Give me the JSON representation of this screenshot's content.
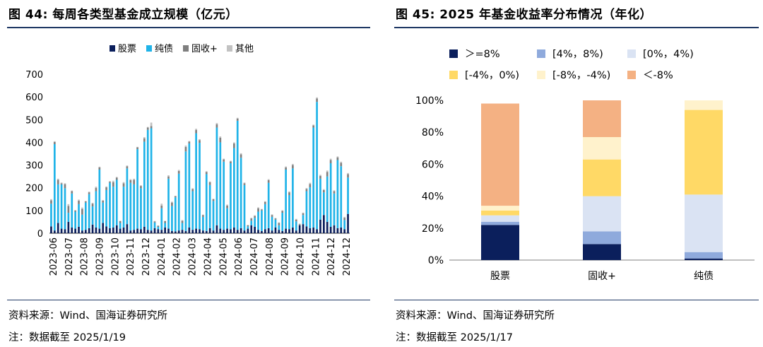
{
  "left": {
    "title": "图 44:  每周各类型基金成立规模（亿元）",
    "source": "资料来源：Wind、国海证券研究所",
    "note": "注：数据截至 2025/1/19",
    "chart_data": {
      "type": "bar",
      "stacked": true,
      "ylim": [
        0,
        700
      ],
      "yticks": [
        0,
        100,
        200,
        300,
        400,
        500,
        600,
        700
      ],
      "x_labels": [
        "2023-06",
        "2023-07",
        "2023-08",
        "2023-09",
        "2023-10",
        "2023-11",
        "2023-12",
        "2024-01",
        "2024-02",
        "2024-03",
        "2024-04",
        "2024-05",
        "2024-06",
        "2024-07",
        "2024-08",
        "2024-09",
        "2024-10",
        "2024-11",
        "2024-12",
        "2024-12"
      ],
      "colors": {
        "股票": "#0b1f5c",
        "纯债": "#1fb3e8",
        "固收+": "#7f7f7f",
        "其他": "#c2c2c2"
      },
      "series": [
        {
          "name": "股票",
          "values": [
            30,
            12,
            45,
            20,
            18,
            50,
            25,
            20,
            28,
            12,
            15,
            22,
            38,
            25,
            20,
            45,
            30,
            22,
            25,
            35,
            20,
            25,
            40,
            12,
            15,
            20,
            18,
            28,
            15,
            12,
            22,
            18,
            15,
            25,
            20,
            10,
            8,
            12,
            15,
            10,
            25,
            15,
            20,
            18,
            12,
            10,
            22,
            12,
            35,
            20,
            15,
            20,
            18,
            25,
            15,
            22,
            12,
            20,
            35,
            28,
            15,
            10,
            18,
            22,
            12,
            25,
            15,
            10,
            20,
            18,
            25,
            12,
            35,
            40,
            30,
            22,
            25,
            18,
            60,
            80,
            50,
            28,
            35,
            22,
            25,
            18,
            85
          ]
        },
        {
          "name": "纯债",
          "values": [
            100,
            380,
            170,
            195,
            180,
            40,
            150,
            75,
            100,
            70,
            120,
            150,
            80,
            160,
            260,
            90,
            160,
            200,
            180,
            200,
            25,
            180,
            245,
            210,
            200,
            350,
            180,
            375,
            440,
            450,
            25,
            10,
            95,
            20,
            220,
            110,
            150,
            250,
            30,
            350,
            370,
            170,
            420,
            380,
            60,
            250,
            190,
            130,
            430,
            380,
            300,
            90,
            290,
            350,
            480,
            310,
            200,
            10,
            20,
            40,
            80,
            90,
            110,
            200,
            60,
            35,
            20,
            80,
            260,
            150,
            260,
            40,
            0,
            40,
            155,
            180,
            440,
            560,
            180,
            100,
            200,
            280,
            140,
            300,
            270,
            40,
            160
          ]
        },
        {
          "name": "固收+",
          "values": [
            15,
            10,
            20,
            5,
            18,
            30,
            10,
            5,
            15,
            25,
            5,
            8,
            12,
            15,
            10,
            8,
            12,
            5,
            20,
            10,
            8,
            15,
            10,
            12,
            20,
            8,
            10,
            15,
            10,
            10,
            5,
            5,
            12,
            8,
            10,
            15,
            5,
            12,
            10,
            20,
            8,
            10,
            15,
            12,
            8,
            10,
            12,
            8,
            15,
            20,
            10,
            12,
            8,
            20,
            10,
            15,
            8,
            5,
            10,
            8,
            15,
            5,
            10,
            12,
            8,
            5,
            10,
            8,
            10,
            12,
            15,
            8,
            5,
            8,
            10,
            15,
            10,
            15,
            12,
            10,
            20,
            15,
            10,
            12,
            15,
            10,
            15
          ]
        },
        {
          "name": "其他",
          "values": [
            5,
            3,
            5,
            3,
            4,
            8,
            3,
            2,
            5,
            6,
            2,
            3,
            4,
            5,
            3,
            3,
            4,
            2,
            6,
            3,
            2,
            5,
            3,
            4,
            5,
            2,
            3,
            5,
            3,
            15,
            2,
            1,
            8,
            2,
            5,
            4,
            2,
            5,
            3,
            6,
            3,
            3,
            5,
            4,
            2,
            3,
            4,
            2,
            5,
            6,
            3,
            4,
            3,
            5,
            3,
            5,
            3,
            2,
            3,
            3,
            4,
            2,
            3,
            4,
            3,
            2,
            3,
            3,
            4,
            4,
            5,
            3,
            2,
            3,
            4,
            5,
            3,
            5,
            5,
            4,
            6,
            5,
            4,
            4,
            5,
            4,
            5
          ]
        }
      ]
    }
  },
  "right": {
    "title": "图 45:  2025 年基金收益率分布情况（年化）",
    "source": "资料来源：Wind、国海证券研究所",
    "note": "注：数据截至 2025/1/17",
    "chart_data": {
      "type": "bar",
      "stacked": true,
      "percent": true,
      "categories": [
        "股票",
        "固收+",
        "纯债"
      ],
      "ylim": [
        0,
        100
      ],
      "yticks": [
        "0%",
        "20%",
        "40%",
        "60%",
        "80%",
        "100%"
      ],
      "series": [
        {
          "name": "＞=8%",
          "color": "#0b1f5c",
          "values": [
            22,
            10,
            1
          ]
        },
        {
          "name": "[4%，8%)",
          "color": "#8faadc",
          "values": [
            2,
            8,
            4
          ]
        },
        {
          "name": "[0%，4%)",
          "color": "#dae3f3",
          "values": [
            4,
            22,
            36
          ]
        },
        {
          "name": "[-4%，0%)",
          "color": "#ffd966",
          "values": [
            3,
            23,
            53
          ]
        },
        {
          "name": "[-8%，-4%)",
          "color": "#fff2cc",
          "values": [
            3,
            14,
            6
          ]
        },
        {
          "name": "＜-8%",
          "color": "#f4b183",
          "values": [
            64,
            23,
            0
          ]
        }
      ]
    }
  }
}
